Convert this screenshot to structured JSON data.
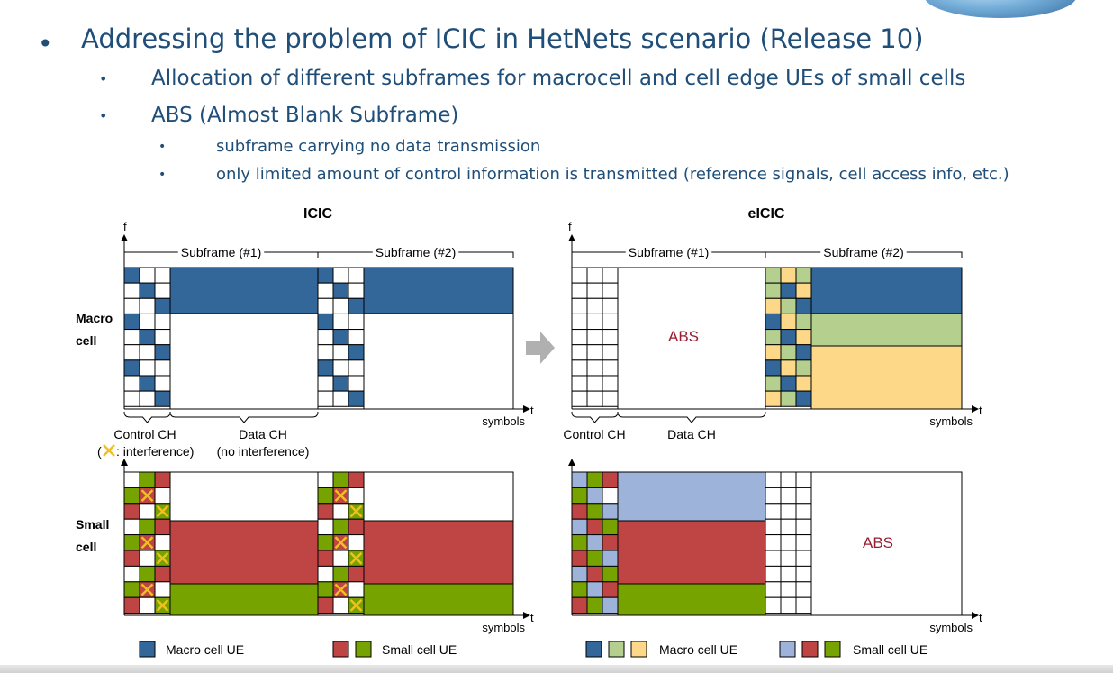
{
  "slide": {
    "bullet_l1": "Addressing the problem of ICIC in HetNets scenario (Release 10)",
    "bullet_l2_a": "Allocation of different subframes for macrocell and cell edge UEs of small cells",
    "bullet_l2_b": "ABS (Almost Blank Subframe)",
    "bullet_l3_a": "subframe carrying no data transmission",
    "bullet_l3_b": "only limited amount of control information is transmitted (reference signals, cell access info, etc.)"
  },
  "diagram": {
    "title_icic": "ICIC",
    "title_eicic": "eICIC",
    "axis_f": "f",
    "axis_t": "t",
    "axis_symbols": "symbols",
    "subframe_1": "Subframe (#1)",
    "subframe_2": "Subframe (#2)",
    "macro_label_1": "Macro",
    "macro_label_2": "cell",
    "small_label_1": "Small",
    "small_label_2": "cell",
    "control_ch": "Control CH",
    "data_ch": "Data CH",
    "interference_note": ": interference)",
    "no_interference": "(no interference)",
    "abs": "ABS",
    "legend_macro": "Macro cell UE",
    "legend_small": "Small cell UE",
    "interference_marker": "✕",
    "colors": {
      "macro_blue": "#336699",
      "macro_green": "#b5cf8e",
      "macro_yellow": "#fdd889",
      "small_lightblue": "#9db3d9",
      "small_red": "#bf4444",
      "small_green": "#77a300",
      "abs_text": "#9b1c31",
      "text_blue": "#1f4e79",
      "interference_x": "#f0c020"
    }
  }
}
